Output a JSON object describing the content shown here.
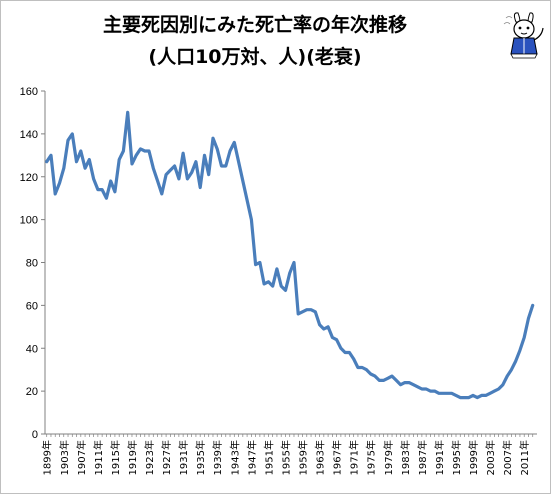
{
  "chart_data": {
    "type": "line",
    "title": "主要死因別にみた死亡率の年次推移",
    "subtitle": "(人口10万対、人)(老衰)",
    "xlabel": "",
    "ylabel": "",
    "ylim": [
      0,
      160
    ],
    "y_ticks": [
      0,
      20,
      40,
      60,
      80,
      100,
      120,
      140,
      160
    ],
    "grid": false,
    "legend": "none",
    "line_color": "#4a7ebb",
    "x_tick_labels": [
      "1899年",
      "1903年",
      "1907年",
      "1911年",
      "1915年",
      "1919年",
      "1923年",
      "1927年",
      "1931年",
      "1935年",
      "1939年",
      "1943年",
      "1947年",
      "1951年",
      "1955年",
      "1959年",
      "1963年",
      "1967年",
      "1971年",
      "1975年",
      "1979年",
      "1983年",
      "1987年",
      "1991年",
      "1995年",
      "1999年",
      "2003年",
      "2007年",
      "2011年"
    ],
    "series": [
      {
        "x": [
          1899,
          1900,
          1901,
          1902,
          1903,
          1904,
          1905,
          1906,
          1907,
          1908,
          1909,
          1910,
          1911,
          1912,
          1913,
          1914,
          1915,
          1916,
          1917,
          1918,
          1919,
          1920,
          1921,
          1922,
          1923,
          1924,
          1925,
          1926,
          1927,
          1928,
          1929,
          1930,
          1931,
          1932,
          1933,
          1934,
          1935,
          1936,
          1937,
          1938,
          1939,
          1940,
          1941,
          1942,
          1943,
          1947,
          1948,
          1949,
          1950,
          1951,
          1952,
          1953,
          1954,
          1955,
          1956,
          1957,
          1958,
          1959,
          1960,
          1961,
          1962,
          1963,
          1964,
          1965,
          1966,
          1967,
          1968,
          1969,
          1970,
          1971,
          1972,
          1973,
          1974,
          1975,
          1976,
          1977,
          1978,
          1979,
          1980,
          1981,
          1982,
          1983,
          1984,
          1985,
          1986,
          1987,
          1988,
          1989,
          1990,
          1991,
          1992,
          1993,
          1994,
          1995,
          1996,
          1997,
          1998,
          1999,
          2000,
          2001,
          2002,
          2003,
          2004,
          2005,
          2006,
          2007,
          2008,
          2009,
          2010,
          2011,
          2012,
          2013
        ],
        "values": [
          127,
          130,
          112,
          117,
          124,
          137,
          140,
          127,
          132,
          124,
          128,
          119,
          114,
          114,
          110,
          118,
          113,
          128,
          132,
          150,
          126,
          130,
          133,
          132,
          132,
          124,
          118,
          112,
          121,
          123,
          125,
          119,
          131,
          119,
          122,
          127,
          115,
          130,
          121,
          138,
          133,
          125,
          125,
          132,
          136,
          100,
          79,
          80,
          70,
          71,
          69,
          77,
          69,
          67,
          75,
          80,
          56,
          57,
          58,
          58,
          57,
          51,
          49,
          50,
          45,
          44,
          40,
          38,
          38,
          35,
          31,
          31,
          30,
          28,
          27,
          25,
          25,
          26,
          27,
          25,
          23,
          24,
          24,
          23,
          22,
          21,
          21,
          20,
          20,
          19,
          19,
          19,
          19,
          18,
          17,
          17,
          17,
          18,
          17,
          18,
          18,
          19,
          20,
          21,
          23,
          27,
          30,
          34,
          39,
          45,
          54,
          60
        ]
      }
    ]
  }
}
